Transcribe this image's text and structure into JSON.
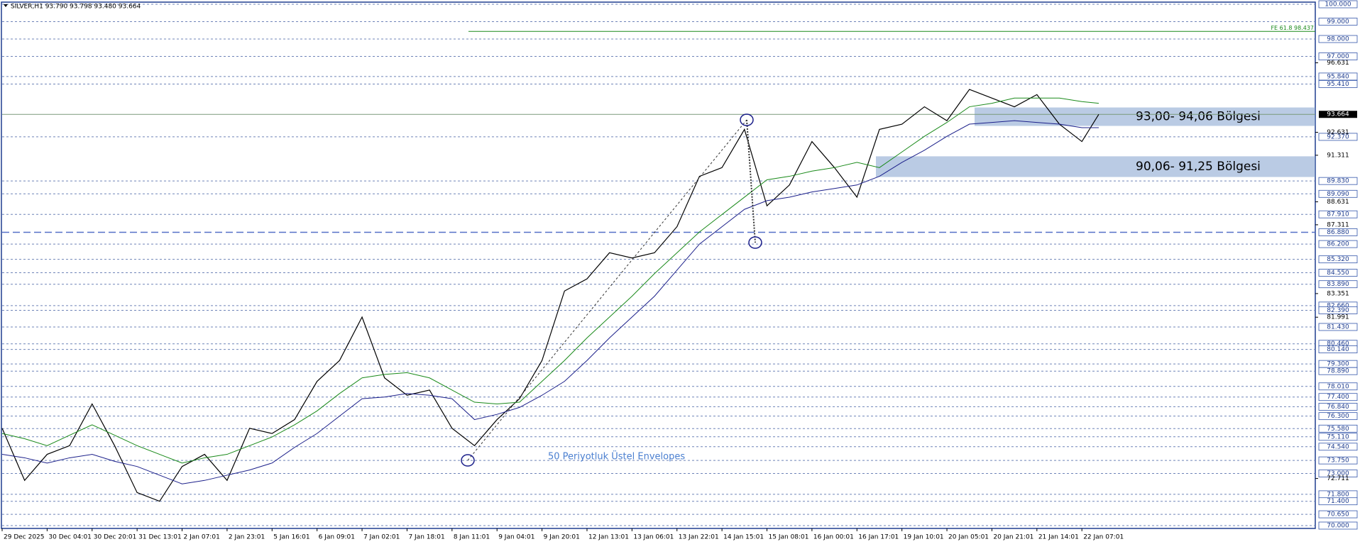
{
  "chart_data": {
    "type": "line",
    "title": "SILVER,H1  93.790 93.798 93.480 93.664",
    "x": [
      0,
      8,
      16,
      24,
      32,
      40,
      48,
      56,
      64,
      72,
      80,
      88,
      96,
      104,
      112,
      120,
      128,
      136,
      144,
      152,
      160,
      168,
      176,
      184,
      192,
      200,
      208,
      216,
      224,
      232,
      240,
      248,
      256,
      264,
      272,
      280,
      288,
      296,
      304,
      312,
      320,
      328,
      336,
      344,
      352,
      360,
      368,
      376,
      384,
      390
    ],
    "xlim": [
      0,
      467
    ],
    "xticks": [
      {
        "value": 0,
        "label": "29 Dec 2025"
      },
      {
        "value": 16,
        "label": "30 Dec 04:01"
      },
      {
        "value": 32,
        "label": "30 Dec 20:01"
      },
      {
        "value": 48,
        "label": "31 Dec 13:01"
      },
      {
        "value": 64,
        "label": "2 Jan 07:01"
      },
      {
        "value": 80,
        "label": "2 Jan 23:01"
      },
      {
        "value": 96,
        "label": "5 Jan 16:01"
      },
      {
        "value": 112,
        "label": "6 Jan 09:01"
      },
      {
        "value": 128,
        "label": "7 Jan 02:01"
      },
      {
        "value": 144,
        "label": "7 Jan 18:01"
      },
      {
        "value": 160,
        "label": "8 Jan 11:01"
      },
      {
        "value": 176,
        "label": "9 Jan 04:01"
      },
      {
        "value": 192,
        "label": "9 Jan 20:01"
      },
      {
        "value": 208,
        "label": "12 Jan 13:01"
      },
      {
        "value": 224,
        "label": "13 Jan 06:01"
      },
      {
        "value": 240,
        "label": "13 Jan 22:01"
      },
      {
        "value": 256,
        "label": "14 Jan 15:01"
      },
      {
        "value": 272,
        "label": "15 Jan 08:01"
      },
      {
        "value": 288,
        "label": "16 Jan 00:01"
      },
      {
        "value": 304,
        "label": "16 Jan 17:01"
      },
      {
        "value": 320,
        "label": "19 Jan 10:01"
      },
      {
        "value": 336,
        "label": "20 Jan 05:01"
      },
      {
        "value": 352,
        "label": "20 Jan 21:01"
      },
      {
        "value": 368,
        "label": "21 Jan 14:01"
      },
      {
        "value": 384,
        "label": "22 Jan 07:01"
      }
    ],
    "ylim": [
      70,
      100
    ],
    "yticks": [
      96.631,
      92.631,
      91.311,
      88.631,
      87.311,
      83.351,
      81.991,
      72.711
    ],
    "levels": [
      {
        "value": 100,
        "label": "100.000"
      },
      {
        "value": 99,
        "label": "99.000"
      },
      {
        "value": 98,
        "label": "98.000"
      },
      {
        "value": 97,
        "label": "97.000"
      },
      {
        "value": 95.84,
        "label": "95.840"
      },
      {
        "value": 95.41,
        "label": "95.410"
      },
      {
        "value": 92.37,
        "label": "92.370"
      },
      {
        "value": 89.83,
        "label": "89.830"
      },
      {
        "value": 89.09,
        "label": "89.090"
      },
      {
        "value": 87.91,
        "label": "87.910"
      },
      {
        "value": 86.88,
        "label": "86.880"
      },
      {
        "value": 86.2,
        "label": "86.200"
      },
      {
        "value": 85.32,
        "label": "85.320"
      },
      {
        "value": 84.55,
        "label": "84.550"
      },
      {
        "value": 83.89,
        "label": "83.890"
      },
      {
        "value": 82.66,
        "label": "82.660"
      },
      {
        "value": 82.39,
        "label": "82.390"
      },
      {
        "value": 81.43,
        "label": "81.430"
      },
      {
        "value": 80.46,
        "label": "80.460"
      },
      {
        "value": 80.14,
        "label": "80.140"
      },
      {
        "value": 79.3,
        "label": "79.300"
      },
      {
        "value": 78.89,
        "label": "78.890"
      },
      {
        "value": 78.01,
        "label": "78.010"
      },
      {
        "value": 77.4,
        "label": "77.400"
      },
      {
        "value": 76.84,
        "label": "76.840"
      },
      {
        "value": 76.3,
        "label": "76.300"
      },
      {
        "value": 75.58,
        "label": "75.580"
      },
      {
        "value": 75.11,
        "label": "75.110"
      },
      {
        "value": 74.54,
        "label": "74.540"
      },
      {
        "value": 73.75,
        "label": "73.750"
      },
      {
        "value": 73,
        "label": "73.000"
      },
      {
        "value": 71.8,
        "label": "71.800"
      },
      {
        "value": 71.4,
        "label": "71.400"
      },
      {
        "value": 70.65,
        "label": "70.650"
      },
      {
        "value": 70,
        "label": "70.000"
      }
    ],
    "current_price": 93.664,
    "fe_level": {
      "value": 98.437,
      "label": "FE 61.8 98.437"
    },
    "zones": [
      {
        "label": "93,00- 94,06 Bölgesi",
        "from": 93.0,
        "to": 94.06
      },
      {
        "label": "90,06- 91,25 Bölgesi",
        "from": 90.06,
        "to": 91.25
      }
    ],
    "annotation": "50 Periyotluk Üstel Envelopes",
    "series": [
      {
        "color": "#000000",
        "values": [
          75.6,
          72.6,
          74.1,
          74.6,
          77.0,
          74.6,
          71.9,
          71.4,
          73.4,
          74.1,
          72.6,
          75.6,
          75.3,
          76.1,
          78.3,
          79.5,
          82.0,
          78.5,
          77.5,
          77.8,
          75.6,
          74.6,
          76.1,
          77.3,
          79.5,
          83.5,
          84.2,
          85.7,
          85.4,
          85.7,
          87.2,
          90.1,
          90.6,
          92.8,
          88.4,
          89.6,
          92.1,
          90.6,
          88.9,
          92.8,
          93.1,
          94.1,
          93.3,
          95.1,
          94.6,
          94.1,
          94.8,
          93.1,
          92.1,
          93.664
        ]
      },
      {
        "color": "#1a8a1a",
        "values": [
          75.3,
          75.0,
          74.6,
          75.2,
          75.8,
          75.2,
          74.6,
          74.1,
          73.6,
          73.9,
          74.1,
          74.6,
          75.1,
          75.8,
          76.6,
          77.6,
          78.5,
          78.7,
          78.8,
          78.5,
          77.8,
          77.1,
          77.0,
          77.1,
          78.3,
          79.5,
          80.8,
          82.0,
          83.2,
          84.5,
          85.7,
          86.9,
          87.9,
          88.9,
          89.9,
          90.1,
          90.4,
          90.6,
          90.9,
          90.6,
          91.5,
          92.4,
          93.2,
          94.1,
          94.3,
          94.6,
          94.6,
          94.6,
          94.4,
          94.3
        ]
      },
      {
        "color": "#1b1f8a",
        "values": [
          74.1,
          73.9,
          73.6,
          73.9,
          74.1,
          73.7,
          73.4,
          72.9,
          72.4,
          72.6,
          72.9,
          73.2,
          73.6,
          74.5,
          75.3,
          76.3,
          77.3,
          77.4,
          77.6,
          77.5,
          77.3,
          76.1,
          76.4,
          76.8,
          77.5,
          78.3,
          79.5,
          80.8,
          82.0,
          83.2,
          84.7,
          86.2,
          87.2,
          88.2,
          88.7,
          88.9,
          89.2,
          89.4,
          89.6,
          90.1,
          90.9,
          91.6,
          92.4,
          93.1,
          93.2,
          93.3,
          93.2,
          93.1,
          92.9,
          92.9
        ]
      }
    ]
  }
}
